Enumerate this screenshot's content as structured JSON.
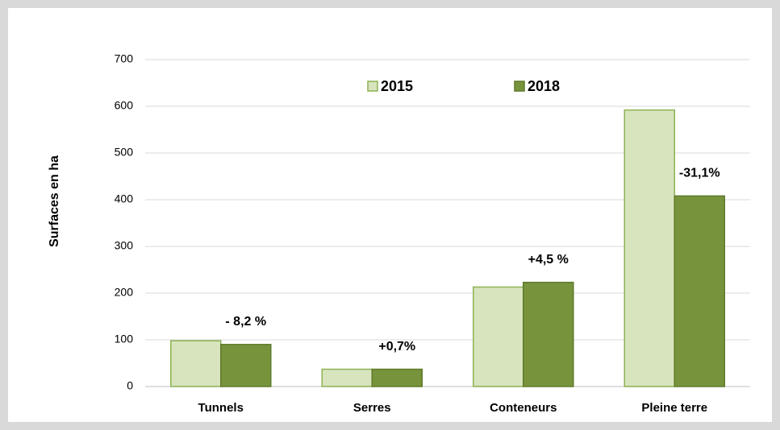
{
  "chart_data": {
    "type": "bar",
    "y_label": "Surfaces en ha",
    "categories": [
      "Tunnels",
      "Serres",
      "Conteneurs",
      "Pleine terre"
    ],
    "series": [
      {
        "name": "2015",
        "color": "#d7e4bd",
        "edge": "#8db253",
        "values": [
          98,
          37,
          213,
          592
        ]
      },
      {
        "name": "2018",
        "color": "#77933c",
        "edge": "#5e7a2a",
        "values": [
          90,
          37,
          223,
          408
        ]
      }
    ],
    "annotations": [
      "- 8,2 %",
      "+0,7%",
      "+4,5 %",
      "-31,1%"
    ],
    "ylim": [
      0,
      700
    ],
    "yticks": [
      0,
      100,
      200,
      300,
      400,
      500,
      600,
      700
    ],
    "grid": true,
    "legend": "top"
  }
}
